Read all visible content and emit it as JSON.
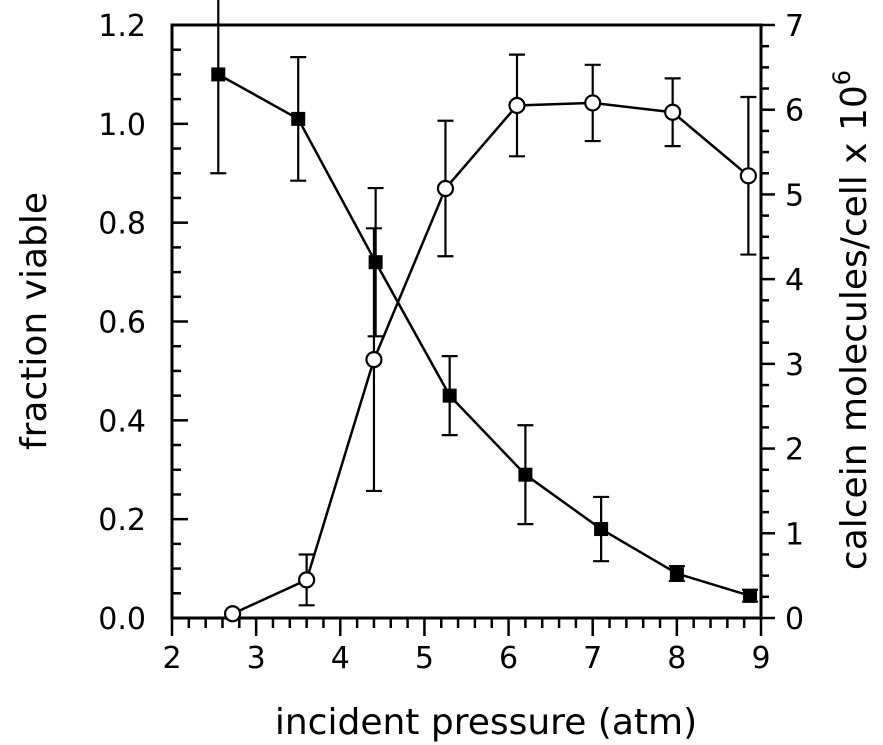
{
  "chart_data": {
    "type": "line",
    "title": "",
    "xlabel": "incident pressure (atm)",
    "ylabel_left": "fraction viable",
    "ylabel_right": "calcein molecules/cell x 10",
    "ylabel_right_exponent": "6",
    "xlim": [
      2,
      9
    ],
    "ylim_left": [
      0,
      1.2
    ],
    "ylim_right": [
      0,
      7
    ],
    "xticks": [
      "2",
      "3",
      "4",
      "5",
      "6",
      "7",
      "8",
      "9"
    ],
    "yticks_left": [
      "0.0",
      "0.2",
      "0.4",
      "0.6",
      "0.8",
      "1.0",
      "1.2"
    ],
    "yticks_right": [
      "0",
      "1",
      "2",
      "3",
      "4",
      "5",
      "6",
      "7"
    ],
    "grid": false,
    "legend": "none",
    "series": [
      {
        "axis": "left",
        "marker": "filled-square",
        "x": [
          2.55,
          3.5,
          4.42,
          5.3,
          6.2,
          7.1,
          8.0,
          8.87
        ],
        "y": [
          1.1,
          1.01,
          0.72,
          0.45,
          0.29,
          0.18,
          0.09,
          0.045
        ],
        "err": [
          0.2,
          0.125,
          0.15,
          0.08,
          0.1,
          0.065,
          0.015,
          0.012
        ]
      },
      {
        "axis": "right",
        "marker": "open-circle",
        "x": [
          2.72,
          3.6,
          4.4,
          5.25,
          6.1,
          7.0,
          7.95,
          8.85
        ],
        "y": [
          0.05,
          0.45,
          3.05,
          5.07,
          6.05,
          6.08,
          5.97,
          5.22
        ],
        "err": [
          0.0,
          0.3,
          1.55,
          0.8,
          0.6,
          0.45,
          0.4,
          0.93
        ]
      }
    ],
    "colors": {
      "ink": "#000000",
      "background": "#ffffff"
    }
  }
}
